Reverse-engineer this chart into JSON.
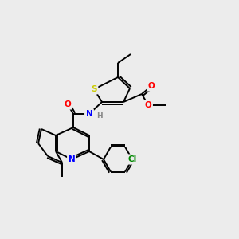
{
  "bg_color": "#ececec",
  "bond_color": "#000000",
  "atom_colors": {
    "S": "#cccc00",
    "N": "#0000ff",
    "O": "#ff0000",
    "Cl": "#008800",
    "C": "#000000",
    "H": "#888888"
  }
}
